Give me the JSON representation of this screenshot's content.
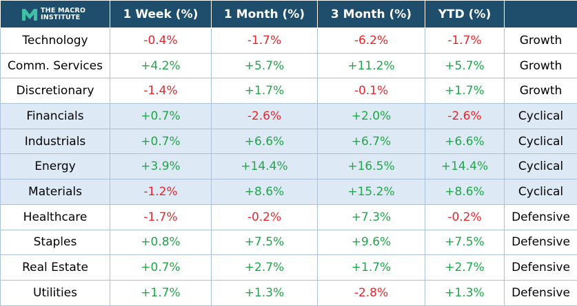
{
  "logo": {
    "line1": "THE MACRO",
    "line2": "INSTITUTE"
  },
  "table": {
    "headers": [
      "1 Week (%)",
      "1 Month (%)",
      "3 Month (%)",
      "YTD (%)"
    ],
    "rows": [
      {
        "name": "Technology",
        "cells": [
          "-0.4%",
          "-1.7%",
          "-6.2%",
          "-1.7%"
        ],
        "group": "Growth",
        "shaded": false
      },
      {
        "name": "Comm. Services",
        "cells": [
          "+4.2%",
          "+5.7%",
          "+11.2%",
          "+5.7%"
        ],
        "group": "Growth",
        "shaded": false
      },
      {
        "name": "Discretionary",
        "cells": [
          "-1.4%",
          "+1.7%",
          "-0.1%",
          "+1.7%"
        ],
        "group": "Growth",
        "shaded": false
      },
      {
        "name": "Financials",
        "cells": [
          "+0.7%",
          "-2.6%",
          "+2.0%",
          "-2.6%"
        ],
        "group": "Cyclical",
        "shaded": true
      },
      {
        "name": "Industrials",
        "cells": [
          "+0.7%",
          "+6.6%",
          "+6.7%",
          "+6.6%"
        ],
        "group": "Cyclical",
        "shaded": true
      },
      {
        "name": "Energy",
        "cells": [
          "+3.9%",
          "+14.4%",
          "+16.5%",
          "+14.4%"
        ],
        "group": "Cyclical",
        "shaded": true
      },
      {
        "name": "Materials",
        "cells": [
          "-1.2%",
          "+8.6%",
          "+15.2%",
          "+8.6%"
        ],
        "group": "Cyclical",
        "shaded": true
      },
      {
        "name": "Healthcare",
        "cells": [
          "-1.7%",
          "-0.2%",
          "+7.3%",
          "-0.2%"
        ],
        "group": "Defensive",
        "shaded": false
      },
      {
        "name": "Staples",
        "cells": [
          "+0.8%",
          "+7.5%",
          "+9.6%",
          "+7.5%"
        ],
        "group": "Defensive",
        "shaded": false
      },
      {
        "name": "Real Estate",
        "cells": [
          "+0.7%",
          "+2.7%",
          "+1.7%",
          "+2.7%"
        ],
        "group": "Defensive",
        "shaded": false
      },
      {
        "name": "Utilities",
        "cells": [
          "+1.7%",
          "+1.3%",
          "-2.8%",
          "+1.3%"
        ],
        "group": "Defensive",
        "shaded": false
      }
    ]
  }
}
